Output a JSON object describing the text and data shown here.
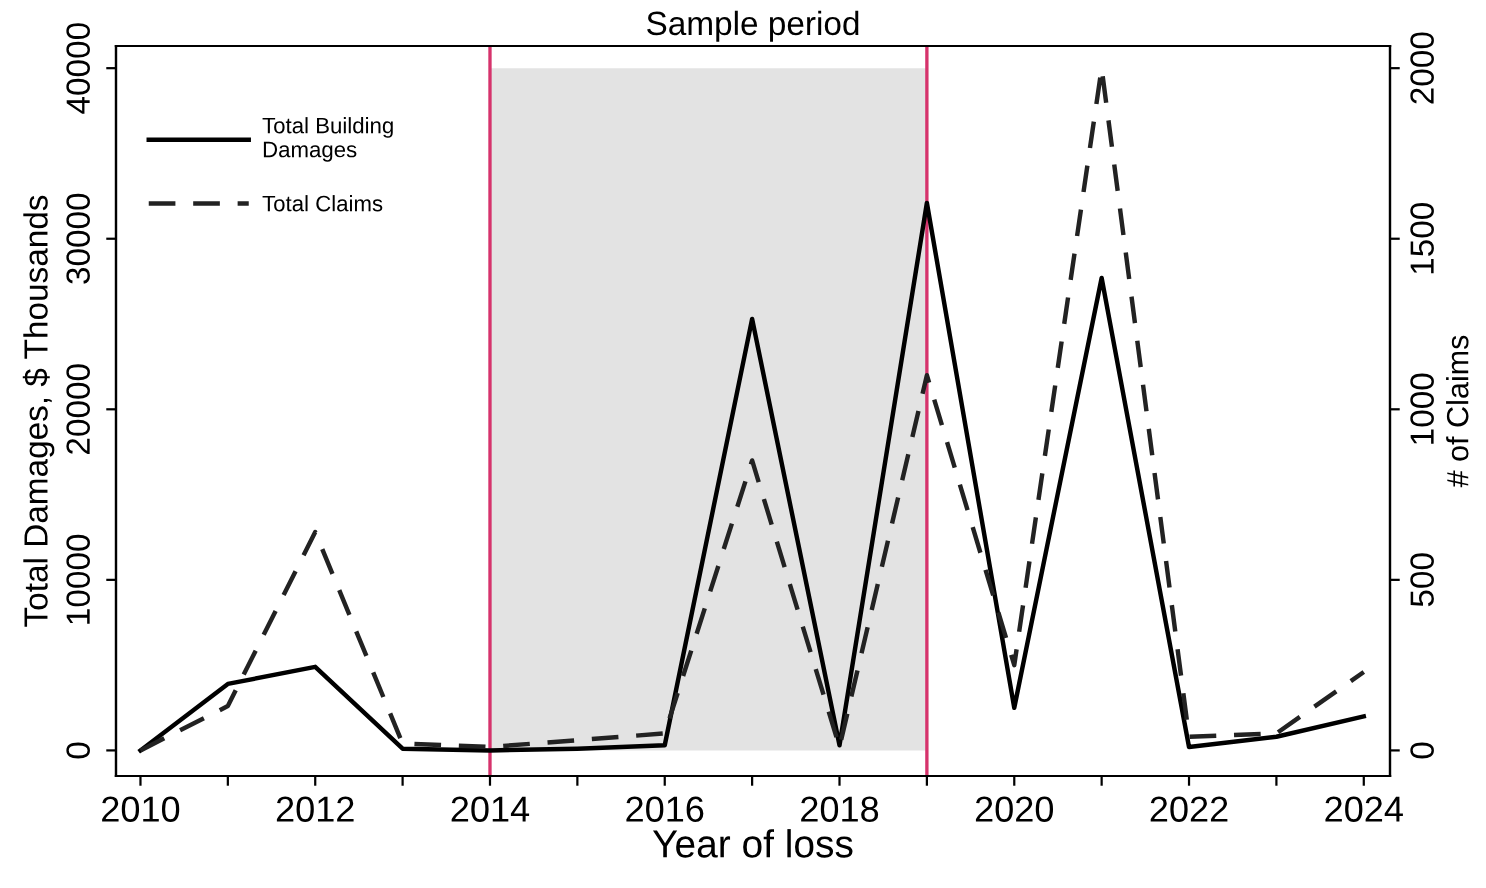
{
  "chart_data": {
    "type": "line",
    "title": "Sample period",
    "xlabel": "Year of loss",
    "ylabel": "Total Damages, $ Thousands",
    "y2label": "# of Claims",
    "x": [
      2010,
      2011,
      2012,
      2013,
      2014,
      2015,
      2016,
      2017,
      2018,
      2019,
      2020,
      2021,
      2022,
      2023,
      2024
    ],
    "series": [
      {
        "name": "Total Building\nDamages",
        "color": "#000000",
        "line_style": "solid",
        "values": [
          0,
          3900,
          4900,
          100,
          0,
          100,
          300,
          25300,
          300,
          32100,
          2500,
          27700,
          200,
          800,
          2000
        ]
      },
      {
        "name": "Total Claims",
        "color": "#222222",
        "line_style": "dashed",
        "axis": "y2",
        "values": [
          0,
          130,
          640,
          20,
          10,
          30,
          50,
          850,
          10,
          1100,
          250,
          2000,
          40,
          50,
          230
        ]
      }
    ],
    "xlim": [
      2009.72,
      2024.3
    ],
    "xticks": [
      2010,
      {
        "value": 2011,
        "label": null
      },
      2012,
      {
        "value": 2013,
        "label": null
      },
      2014,
      {
        "value": 2015,
        "label": null
      },
      2016,
      {
        "value": 2017,
        "label": null
      },
      2018,
      {
        "value": 2019,
        "label": null
      },
      2020,
      {
        "value": 2021,
        "label": null
      },
      2022,
      {
        "value": 2023,
        "label": null
      },
      2024
    ],
    "ylim": [
      -1500,
      41300
    ],
    "yticks": [
      0,
      10000,
      20000,
      30000,
      40000
    ],
    "y2lim": [
      -75,
      2065
    ],
    "y2ticks": [
      0,
      500,
      1000,
      1500,
      2000
    ],
    "bands": [
      {
        "axis": "x",
        "from": 2014,
        "to": 2019,
        "color": "#e3e3e3"
      }
    ],
    "ref_lines": [
      {
        "axis": "x",
        "value": 2014,
        "color": "#d6336c"
      },
      {
        "axis": "x",
        "value": 2019,
        "color": "#d6336c"
      }
    ],
    "grid": false,
    "legend": "top left",
    "marker": "none"
  }
}
